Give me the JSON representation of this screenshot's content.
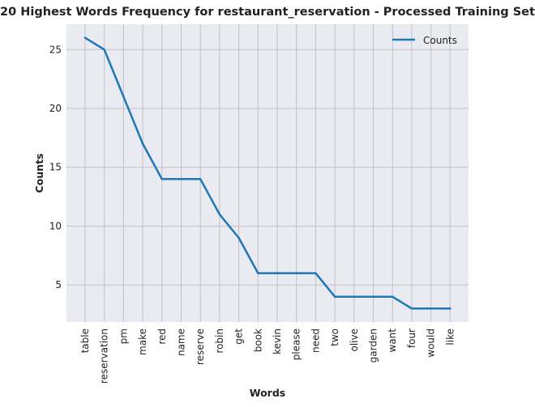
{
  "chart_data": {
    "type": "line",
    "title": "20 Highest Words Frequency for restaurant_reservation - Processed Training Set",
    "xlabel": "Words",
    "ylabel": "Counts",
    "categories": [
      "table",
      "reservation",
      "pm",
      "make",
      "red",
      "name",
      "reserve",
      "robin",
      "get",
      "book",
      "kevin",
      "please",
      "need",
      "two",
      "olive",
      "garden",
      "want",
      "four",
      "would",
      "like"
    ],
    "series": [
      {
        "name": "Counts",
        "values": [
          26,
          25,
          21,
          17,
          14,
          14,
          14,
          11,
          9,
          6,
          6,
          6,
          6,
          4,
          4,
          4,
          4,
          3,
          3,
          3
        ]
      }
    ],
    "yticks": [
      5,
      10,
      15,
      20,
      25
    ],
    "ylim": [
      1.85,
      27.15
    ],
    "grid": true,
    "legend_position": "top-right",
    "colors": {
      "line": "#1f77b4",
      "background": "#eaeaf2",
      "grid": "#c0c0c8"
    }
  }
}
